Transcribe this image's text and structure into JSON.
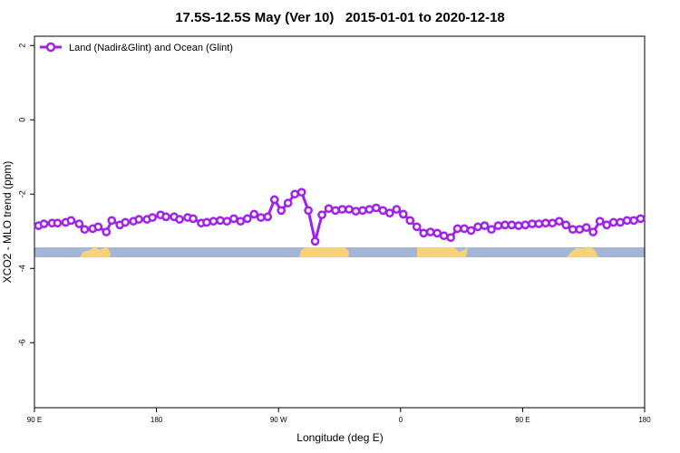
{
  "chart_data": {
    "type": "line",
    "title": "17.5S-12.5S May (Ver 10)   2015-01-01 to 2020-12-18",
    "x_label": "Longitude (deg E)",
    "y_label": "XCO2 - MLO trend (ppm)",
    "xlim": [
      90,
      540
    ],
    "ylim": [
      -7.75,
      2.25
    ],
    "xticks": [
      {
        "value": 90,
        "label": "90 E"
      },
      {
        "value": 180,
        "label": "180"
      },
      {
        "value": 270,
        "label": "90 W"
      },
      {
        "value": 360,
        "label": "0"
      },
      {
        "value": 450,
        "label": "90 E"
      },
      {
        "value": 540,
        "label": "180"
      }
    ],
    "yticks": [
      2,
      0,
      -2,
      -4,
      -6
    ],
    "legend": "top-left",
    "x": [
      93,
      97,
      103,
      107,
      113,
      117,
      123,
      127,
      133,
      137,
      143,
      147,
      153,
      157,
      163,
      167,
      173,
      177,
      183,
      187,
      193,
      197,
      203,
      207,
      213,
      217,
      222,
      227,
      232,
      237,
      242,
      247,
      252,
      257,
      262,
      267,
      272,
      277,
      282,
      287,
      292,
      297,
      302,
      307,
      312,
      317,
      322,
      327,
      332,
      337,
      342,
      347,
      352,
      357,
      362,
      367,
      372,
      377,
      382,
      387,
      392,
      397,
      402,
      407,
      412,
      417,
      422,
      427,
      432,
      437,
      442,
      447,
      452,
      457,
      462,
      467,
      472,
      477,
      482,
      487,
      492,
      497,
      502,
      507,
      512,
      517,
      522,
      527,
      532,
      537
    ],
    "series": [
      {
        "name": "Land (Nadir&Glint) and Ocean (Glint)",
        "color": "#a020f0",
        "values": [
          -2.85,
          -2.8,
          -2.78,
          -2.78,
          -2.76,
          -2.71,
          -2.8,
          -2.95,
          -2.93,
          -2.88,
          -3.02,
          -2.71,
          -2.83,
          -2.76,
          -2.73,
          -2.68,
          -2.68,
          -2.63,
          -2.56,
          -2.61,
          -2.61,
          -2.68,
          -2.63,
          -2.66,
          -2.78,
          -2.76,
          -2.73,
          -2.71,
          -2.73,
          -2.66,
          -2.73,
          -2.66,
          -2.54,
          -2.63,
          -2.61,
          -2.15,
          -2.44,
          -2.24,
          -2.0,
          -1.95,
          -2.44,
          -3.27,
          -2.56,
          -2.39,
          -2.44,
          -2.41,
          -2.41,
          -2.46,
          -2.44,
          -2.41,
          -2.37,
          -2.44,
          -2.51,
          -2.41,
          -2.54,
          -2.71,
          -2.88,
          -3.05,
          -3.02,
          -3.05,
          -3.12,
          -3.17,
          -2.93,
          -2.93,
          -2.98,
          -2.88,
          -2.85,
          -2.95,
          -2.85,
          -2.83,
          -2.83,
          -2.85,
          -2.83,
          -2.8,
          -2.8,
          -2.78,
          -2.78,
          -2.73,
          -2.83,
          -2.95,
          -2.95,
          -2.9,
          -3.02,
          -2.73,
          -2.83,
          -2.76,
          -2.76,
          -2.71,
          -2.71,
          -2.66
        ]
      }
    ]
  }
}
